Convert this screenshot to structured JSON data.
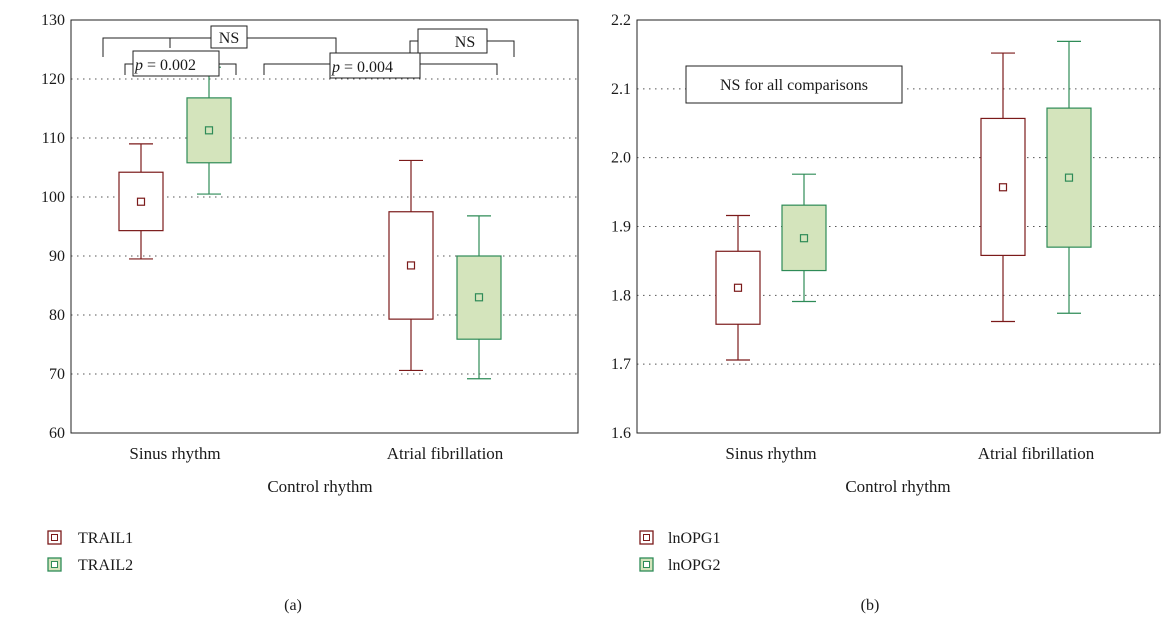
{
  "charts": [
    {
      "panel_label": "(a)",
      "xlabel": "Control rhythm",
      "ylim": [
        60,
        130
      ],
      "yticks": [
        "60",
        "70",
        "80",
        "90",
        "100",
        "110",
        "120",
        "130"
      ],
      "categories": [
        "Sinus rhythm",
        "Atrial fibrillation"
      ],
      "series": [
        {
          "name": "TRAIL1",
          "color": "#7b1a1a",
          "fill": "#ffffff"
        },
        {
          "name": "TRAIL2",
          "color": "#2e8b57",
          "fill": "#d4e4bc"
        }
      ],
      "annotations": {
        "ns_top": "NS",
        "p_left_prefix": "p",
        "p_left_value": " = 0.002",
        "p_mid_prefix": "p",
        "p_mid_value": " = 0.004",
        "ns_right": "NS"
      }
    },
    {
      "panel_label": "(b)",
      "xlabel": "Control rhythm",
      "ylim": [
        1.6,
        2.2
      ],
      "yticks": [
        "1.6",
        "1.7",
        "1.8",
        "1.9",
        "2.0",
        "2.1",
        "2.2"
      ],
      "categories": [
        "Sinus rhythm",
        "Atrial fibrillation"
      ],
      "series": [
        {
          "name": "lnOPG1",
          "color": "#7b1a1a",
          "fill": "#ffffff"
        },
        {
          "name": "lnOPG2",
          "color": "#2e8b57",
          "fill": "#d4e4bc"
        }
      ],
      "annotations": {
        "box_text": "NS for all comparisons"
      }
    }
  ],
  "chart_data": [
    {
      "type": "box",
      "title": "",
      "xlabel": "Control rhythm",
      "ylabel": "",
      "ylim": [
        60,
        130
      ],
      "grid": true,
      "legend": "bottom-left",
      "categories": [
        "Sinus rhythm",
        "Atrial fibrillation"
      ],
      "series": [
        {
          "name": "TRAIL1",
          "boxes": [
            {
              "whisker_low": 89.5,
              "q1": 94.3,
              "median": 99.2,
              "q3": 104.2,
              "whisker_high": 109.0
            },
            {
              "whisker_low": 70.6,
              "q1": 79.3,
              "median": 88.4,
              "q3": 97.5,
              "whisker_high": 106.2
            }
          ]
        },
        {
          "name": "TRAIL2",
          "boxes": [
            {
              "whisker_low": 100.5,
              "q1": 105.8,
              "median": 111.3,
              "q3": 116.8,
              "whisker_high": 122.0
            },
            {
              "whisker_low": 69.2,
              "q1": 75.9,
              "median": 83.0,
              "q3": 90.0,
              "whisker_high": 96.8
            }
          ]
        }
      ]
    },
    {
      "type": "box",
      "title": "",
      "xlabel": "Control rhythm",
      "ylabel": "",
      "ylim": [
        1.6,
        2.2
      ],
      "grid": true,
      "legend": "bottom-left",
      "categories": [
        "Sinus rhythm",
        "Atrial fibrillation"
      ],
      "series": [
        {
          "name": "lnOPG1",
          "boxes": [
            {
              "whisker_low": 1.706,
              "q1": 1.758,
              "median": 1.811,
              "q3": 1.864,
              "whisker_high": 1.916
            },
            {
              "whisker_low": 1.762,
              "q1": 1.858,
              "median": 1.957,
              "q3": 2.057,
              "whisker_high": 2.152
            }
          ]
        },
        {
          "name": "lnOPG2",
          "boxes": [
            {
              "whisker_low": 1.791,
              "q1": 1.836,
              "median": 1.883,
              "q3": 1.931,
              "whisker_high": 1.976
            },
            {
              "whisker_low": 1.774,
              "q1": 1.87,
              "median": 1.971,
              "q3": 2.072,
              "whisker_high": 2.169
            }
          ]
        }
      ]
    }
  ]
}
